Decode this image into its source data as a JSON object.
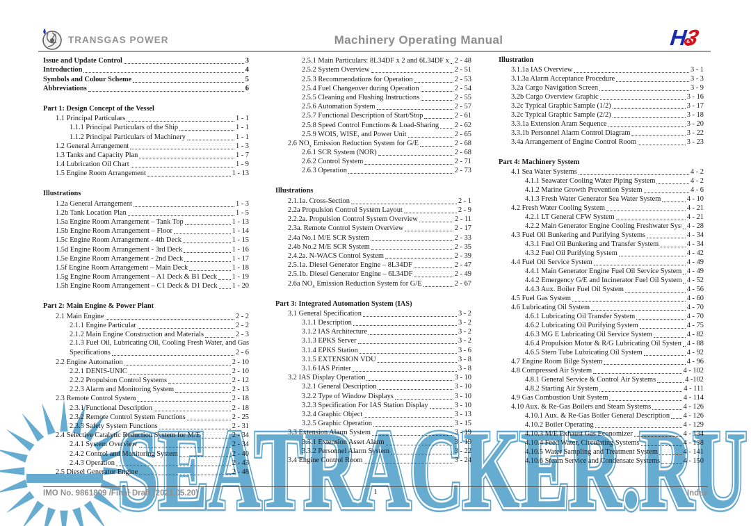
{
  "header": {
    "brand": "TRANSGAS POWER",
    "title": "Machinery Operating Manual",
    "logo_right": {
      "h": "H",
      "amp": "&",
      "three": "3"
    }
  },
  "footer": {
    "left": "IMO No. 9861809 /Final Draft (2021.05.20)",
    "page_number": "1",
    "right": "Index"
  },
  "watermark": {
    "text": "SEATRACKER.RU",
    "color": "#66abd0"
  },
  "toc_columns": [
    {
      "items": [
        {
          "k": "e",
          "l": 0,
          "b": true,
          "t": "Issue and Update Control",
          "p": "3"
        },
        {
          "k": "e",
          "l": 0,
          "b": true,
          "t": "Introduction",
          "p": "4"
        },
        {
          "k": "e",
          "l": 0,
          "b": true,
          "t": "Symbols and Colour Scheme",
          "p": "5"
        },
        {
          "k": "e",
          "l": 0,
          "b": true,
          "t": "Abbreviations",
          "p": "6"
        },
        {
          "k": "s"
        },
        {
          "k": "h",
          "t": "Part 1: Design Concept of the Vessel"
        },
        {
          "k": "e",
          "l": 1,
          "t": "1.1 Principal Particulars",
          "p": "1 - 1"
        },
        {
          "k": "e",
          "l": 2,
          "t": "1.1.1 Principal Particulars of the Ship",
          "p": "1 - 1"
        },
        {
          "k": "e",
          "l": 2,
          "t": "1.1.2 Principal Particulars of Machinery",
          "p": "1 - 1"
        },
        {
          "k": "e",
          "l": 1,
          "t": "1.2 General Arrangement",
          "p": "1 - 3"
        },
        {
          "k": "e",
          "l": 1,
          "t": "1.3 Tanks and Capacity Plan",
          "p": "1 - 7"
        },
        {
          "k": "e",
          "l": 1,
          "t": "1.4 Lubrication Oil Chart",
          "p": "1 - 9"
        },
        {
          "k": "e",
          "l": 1,
          "t": "1.5 Engine Room Arrangement",
          "p": "1 - 13"
        },
        {
          "k": "s"
        },
        {
          "k": "h",
          "t": "Illustrations"
        },
        {
          "k": "e",
          "l": 1,
          "t": "1.2a General Arrangement",
          "p": "1 - 3"
        },
        {
          "k": "e",
          "l": 1,
          "t": "1.2b Tank Location Plan",
          "p": "1 - 5"
        },
        {
          "k": "e",
          "l": 1,
          "t": "1.5a Engine Room Arrangement – Tank Top",
          "p": "1 - 13"
        },
        {
          "k": "e",
          "l": 1,
          "t": "1.5b Engine Room Arrangement – Floor",
          "p": "1 - 14"
        },
        {
          "k": "e",
          "l": 1,
          "t": "1.5c Engine Room Arrangement - 4th Deck",
          "p": "1 - 15"
        },
        {
          "k": "e",
          "l": 1,
          "t": "1.5d Engine Room Arrangement - 3rd Deck",
          "p": "1 - 16"
        },
        {
          "k": "e",
          "l": 1,
          "t": "1.5e Engine Room Arrangement - 2nd Deck",
          "p": "1 - 17"
        },
        {
          "k": "e",
          "l": 1,
          "t": "1.5f Engine Room Arrangement – Main Deck",
          "p": "1 - 18"
        },
        {
          "k": "e",
          "l": 1,
          "t": "1.5g Engine Room Arrangement – A1 Deck & B1 Deck",
          "p": "1 - 19"
        },
        {
          "k": "e",
          "l": 1,
          "t": "1.5h Engine Room Arrangement – C1 Deck & D1 Deck",
          "p": "1 - 20"
        },
        {
          "k": "s"
        },
        {
          "k": "h",
          "t": "Part 2: Main Engine & Power Plant"
        },
        {
          "k": "e",
          "l": 1,
          "t": "2.1 Main Engine",
          "p": "2 - 2"
        },
        {
          "k": "e",
          "l": 2,
          "t": "2.1.1 Engine Particular",
          "p": "2 - 2"
        },
        {
          "k": "e",
          "l": 2,
          "t": "2.1.2 Main Engine Construction and Materials",
          "p": "2 - 3"
        },
        {
          "k": "w",
          "l": 2,
          "t": "2.1.3 Fuel Oil, Lubricating Oil, Cooling Fresh Water, and Gas"
        },
        {
          "k": "e",
          "l": 2,
          "t": "Specifications",
          "p": "2 - 6"
        },
        {
          "k": "e",
          "l": 1,
          "t": "2.2 Engine Automation",
          "p": "2 - 10"
        },
        {
          "k": "e",
          "l": 2,
          "t": "2.2.1 DENIS-UNIC",
          "p": "2 - 10"
        },
        {
          "k": "e",
          "l": 2,
          "t": "2.2.2 Propulsion Control Systems",
          "p": "2 - 12"
        },
        {
          "k": "e",
          "l": 2,
          "t": "2.2.3 Alarm and Monitoring System",
          "p": "2 - 13"
        },
        {
          "k": "e",
          "l": 1,
          "t": "2.3 Remote Control System",
          "p": "2 - 18"
        },
        {
          "k": "e",
          "l": 2,
          "t": "2.3.1 Functional Description",
          "p": "2 - 18"
        },
        {
          "k": "e",
          "l": 2,
          "t": "2.3.2 Remote Control System Functions",
          "p": "2 - 25"
        },
        {
          "k": "e",
          "l": 2,
          "t": "2.3.3 Safety System Functions",
          "p": "2 - 31"
        },
        {
          "k": "e",
          "l": 1,
          "t": "2.4 Selective Catalytic Reduction System for M/E",
          "p": "2 - 34"
        },
        {
          "k": "e",
          "l": 2,
          "t": "2.4.1 System Overview",
          "p": "2 - 34"
        },
        {
          "k": "e",
          "l": 2,
          "t": "2.4.2 Control and Monitoring System",
          "p": "2 - 40"
        },
        {
          "k": "e",
          "l": 2,
          "t": "2.4.3 Operation",
          "p": "2 - 43"
        },
        {
          "k": "e",
          "l": 1,
          "t": "2.5 Diesel Generator Engine",
          "p": "2 - 48"
        }
      ]
    },
    {
      "items": [
        {
          "k": "e",
          "l": 2,
          "t": "2.5.1 Main Particulars: 8L34DF x 2 and 6L34DF x 2",
          "p": "2 - 48"
        },
        {
          "k": "e",
          "l": 2,
          "t": "2.5.2 System Overview",
          "p": "2 - 51"
        },
        {
          "k": "e",
          "l": 2,
          "t": "2.5.3 Recommendations for Operation",
          "p": "2 - 53"
        },
        {
          "k": "e",
          "l": 2,
          "t": "2.5.4 Fuel Changeover during Operation",
          "p": "2 - 54"
        },
        {
          "k": "e",
          "l": 2,
          "t": "2.5.5 Cleaning and Flushing Instructions",
          "p": "2 - 55"
        },
        {
          "k": "e",
          "l": 2,
          "t": "2.5.6 Automation System",
          "p": "2 - 57"
        },
        {
          "k": "e",
          "l": 2,
          "t": "2.5.7 Functional Description of Start/Stop",
          "p": "2 - 61"
        },
        {
          "k": "e",
          "l": 2,
          "t": "2.5.8 Speed Control Functions & Load-Sharing",
          "p": "2 - 62"
        },
        {
          "k": "e",
          "l": 2,
          "t": "2.5.9 WOIS, WISE, and Power Unit",
          "p": "2 - 65"
        },
        {
          "k": "e",
          "l": 1,
          "t": "2.6 NO[x] Emission Reduction System for G/E",
          "p": "2 - 68"
        },
        {
          "k": "e",
          "l": 2,
          "t": "2.6.1 SCR System (NOR)",
          "p": "2 - 68"
        },
        {
          "k": "e",
          "l": 2,
          "t": "2.6.2 Control System",
          "p": "2 - 71"
        },
        {
          "k": "e",
          "l": 2,
          "t": "2.6.3 Operation",
          "p": "2 - 73"
        },
        {
          "k": "s"
        },
        {
          "k": "h",
          "t": "Illustrations"
        },
        {
          "k": "e",
          "l": 1,
          "t": "2.1.1a. Cross-Section",
          "p": "2 - 1"
        },
        {
          "k": "e",
          "l": 1,
          "t": "2.2a Propulsion Control System Layout",
          "p": "2 - 9"
        },
        {
          "k": "e",
          "l": 1,
          "t": "2.2.2a. Propulsion Control System Overview",
          "p": "2 - 11"
        },
        {
          "k": "e",
          "l": 1,
          "t": "2.3a. Remote Control System Overview",
          "p": "2 - 17"
        },
        {
          "k": "e",
          "l": 1,
          "t": "2.4a No.1 M/E SCR System",
          "p": "2 - 33"
        },
        {
          "k": "e",
          "l": 1,
          "t": "2.4b No.2 M/E SCR System",
          "p": "2 - 35"
        },
        {
          "k": "e",
          "l": 1,
          "t": "2.4.2a. N-WACS Control System",
          "p": "2 - 39"
        },
        {
          "k": "e",
          "l": 1,
          "t": "2.5.1a. Diesel Generator Engine – 8L34DF",
          "p": "2 - 47"
        },
        {
          "k": "e",
          "l": 1,
          "t": "2.5.1b. Diesel Generator Engine – 6L34DF",
          "p": "2 - 49"
        },
        {
          "k": "e",
          "l": 1,
          "t": "2.6a NO[x] Emission Reduction System for G/E",
          "p": "2 - 67"
        },
        {
          "k": "s"
        },
        {
          "k": "h",
          "t": "Part 3: Integrated Automation System (IAS)"
        },
        {
          "k": "e",
          "l": 1,
          "t": "3.1 General Specification",
          "p": "3 - 2"
        },
        {
          "k": "e",
          "l": 2,
          "t": "3.1.1 Description",
          "p": "3 - 2"
        },
        {
          "k": "e",
          "l": 2,
          "t": "3.1.2 IAS Architecture",
          "p": "3 - 2"
        },
        {
          "k": "e",
          "l": 2,
          "t": "3.1.3 EPKS Server",
          "p": "3 - 2"
        },
        {
          "k": "e",
          "l": 2,
          "t": "3.1.4 EPKS Station",
          "p": "3 - 6"
        },
        {
          "k": "e",
          "l": 2,
          "t": "3.1.5 EXTENSION VDU",
          "p": "3 - 8"
        },
        {
          "k": "e",
          "l": 2,
          "t": "3.1.6 IAS Printer",
          "p": "3 - 8"
        },
        {
          "k": "e",
          "l": 1,
          "t": "3.2 IAS Display Operation",
          "p": "3 - 10"
        },
        {
          "k": "e",
          "l": 2,
          "t": "3.2.1 General Description",
          "p": "3 - 10"
        },
        {
          "k": "e",
          "l": 2,
          "t": "3.2.2 Type of Window Displays",
          "p": "3 - 10"
        },
        {
          "k": "e",
          "l": 2,
          "t": "3.2.3 Specification For IAS Station Display",
          "p": "3 - 10"
        },
        {
          "k": "e",
          "l": 2,
          "t": "3.2.4 Graphic Object",
          "p": "3 - 13"
        },
        {
          "k": "e",
          "l": 2,
          "t": "3.2.5 Graphic Operation",
          "p": "3 - 15"
        },
        {
          "k": "e",
          "l": 1,
          "t": "3.3 Extension Alarm System",
          "p": "3 - 19"
        },
        {
          "k": "e",
          "l": 2,
          "t": "3.3.1 Extension Asset Alarm",
          "p": "3 - 19"
        },
        {
          "k": "e",
          "l": 2,
          "t": "3.3.2 Personnel Alarm System",
          "p": "3 - 22"
        },
        {
          "k": "e",
          "l": 1,
          "t": "3.4 Engine Control Room",
          "p": "3 - 24"
        }
      ]
    },
    {
      "items": [
        {
          "k": "h",
          "t": "Illustration"
        },
        {
          "k": "e",
          "l": 1,
          "t": "3.1.1a IAS Overview",
          "p": "3 - 1"
        },
        {
          "k": "e",
          "l": 1,
          "t": "3.1.3a Alarm Acceptance Procedure",
          "p": "3 - 3"
        },
        {
          "k": "e",
          "l": 1,
          "t": "3.2a Cargo Navigation Screen",
          "p": "3 - 9"
        },
        {
          "k": "e",
          "l": 1,
          "t": "3.2b Cargo Overview Graphic",
          "p": "3 - 16"
        },
        {
          "k": "e",
          "l": 1,
          "t": "3.2c Typical Graphic Sample (1/2)",
          "p": "3 - 17"
        },
        {
          "k": "e",
          "l": 1,
          "t": "3.2c Typical Graphic Sample (2/2)",
          "p": "3 - 18"
        },
        {
          "k": "e",
          "l": 1,
          "t": "3.3.1a Extension Aram Sequence",
          "p": "3 - 20"
        },
        {
          "k": "e",
          "l": 1,
          "t": "3.3.1b Personnel Alarm Control Diagram",
          "p": "3 - 22"
        },
        {
          "k": "e",
          "l": 1,
          "t": "3.4a Arrangement of Engine Control Room",
          "p": "3 - 23"
        },
        {
          "k": "s"
        },
        {
          "k": "h",
          "t": "Part 4: Machinery System"
        },
        {
          "k": "e",
          "l": 1,
          "t": "4.1 Sea Water Systems",
          "p": "4 - 2"
        },
        {
          "k": "e",
          "l": 2,
          "t": "4.1.1 Seawater Cooling Water Piping System",
          "p": "4 - 2"
        },
        {
          "k": "e",
          "l": 2,
          "t": "4.1.2 Marine Growth Prevention System",
          "p": "4 - 6"
        },
        {
          "k": "e",
          "l": 2,
          "t": "4.1.3 Fresh Water Generator Sea Water System",
          "p": "4 - 10"
        },
        {
          "k": "e",
          "l": 1,
          "t": "4.2 Fresh Water Cooling System",
          "p": "4 - 21"
        },
        {
          "k": "e",
          "l": 2,
          "t": "4.2.1 LT General CFW System",
          "p": "4 - 21"
        },
        {
          "k": "e",
          "l": 2,
          "t": "4.2.2 Main Generator Engine Cooling Freshwater System",
          "p": "4 - 28"
        },
        {
          "k": "e",
          "l": 1,
          "t": "4.3 Fuel Oil Bunkering and Purifying Systems",
          "p": "4 - 34"
        },
        {
          "k": "e",
          "l": 2,
          "t": "4.3.1 Fuel Oil Bunkering and Transfer System",
          "p": "4 - 34"
        },
        {
          "k": "e",
          "l": 2,
          "t": "4.3.2 Fuel Oil Purifying System",
          "p": "4 - 42"
        },
        {
          "k": "e",
          "l": 1,
          "t": "4.4 Fuel Oil Service System",
          "p": "4 - 49"
        },
        {
          "k": "e",
          "l": 2,
          "t": "4.4.1 Main Generator Engine Fuel Oil Service System",
          "p": "4 - 49"
        },
        {
          "k": "e",
          "l": 2,
          "t": "4.4.2 Emergency G/E and Incinerator Fuel Oil System",
          "p": "4 - 52"
        },
        {
          "k": "e",
          "l": 2,
          "t": "4.4.3 Aux. Boiler Fuel Oil System",
          "p": "4 - 56"
        },
        {
          "k": "e",
          "l": 1,
          "t": "4.5 Fuel Gas System",
          "p": "4 - 60"
        },
        {
          "k": "e",
          "l": 1,
          "t": "4.6 Lubricating Oil System",
          "p": "4 - 70"
        },
        {
          "k": "e",
          "l": 2,
          "t": "4.6.1 Lubricating Oil Transfer System",
          "p": "4 - 70"
        },
        {
          "k": "e",
          "l": 2,
          "t": "4.6.2 Lubricating Oil Purifying System",
          "p": "4 - 75"
        },
        {
          "k": "e",
          "l": 2,
          "t": "4.6.3 MG E Lubricating Oil Service System",
          "p": "4 - 82"
        },
        {
          "k": "e",
          "l": 2,
          "t": "4.6.4 Propulsion Motor & R/G Lubricating Oil Systems",
          "p": "4 - 88"
        },
        {
          "k": "e",
          "l": 2,
          "t": "4.6.5 Stern Tube Lubricating Oil System",
          "p": "4 - 92"
        },
        {
          "k": "e",
          "l": 1,
          "t": "4.7 Engine Room Bilge System",
          "p": "4 - 96"
        },
        {
          "k": "e",
          "l": 1,
          "t": "4.8 Compressed Air System",
          "p": "4 - 102"
        },
        {
          "k": "e",
          "l": 2,
          "t": "4.8.1 General Service & Control Air Systems",
          "p": "4 -102"
        },
        {
          "k": "e",
          "l": 2,
          "t": "4.8.2 Starting Air System",
          "p": "4 - 111"
        },
        {
          "k": "e",
          "l": 1,
          "t": "4.9 Gas Combustion Unit System",
          "p": "4 - 114"
        },
        {
          "k": "e",
          "l": 1,
          "t": "4.10 Aux. & Re-Gas Boilers and Steam Systems",
          "p": "4 - 126"
        },
        {
          "k": "e",
          "l": 2,
          "t": "4.10.1 Aux. & Re-Gas Boiler General Description",
          "p": "4 - 126"
        },
        {
          "k": "e",
          "l": 2,
          "t": "4.10.2 Boiler Operating",
          "p": "4 - 129"
        },
        {
          "k": "e",
          "l": 2,
          "t": "4.10.3 M/E Exhaust Gas Economizer",
          "p": "4 - 134"
        },
        {
          "k": "e",
          "l": 2,
          "t": "4.10.4 Feed Water, Circulating Systems",
          "p": "4 - 138"
        },
        {
          "k": "e",
          "l": 2,
          "t": "4.10.5 Water Sampling and Treatment System",
          "p": "4 - 141"
        },
        {
          "k": "e",
          "l": 2,
          "t": "4.10.6 Steam Service and Condensate Systems",
          "p": "4 - 150"
        }
      ]
    }
  ]
}
